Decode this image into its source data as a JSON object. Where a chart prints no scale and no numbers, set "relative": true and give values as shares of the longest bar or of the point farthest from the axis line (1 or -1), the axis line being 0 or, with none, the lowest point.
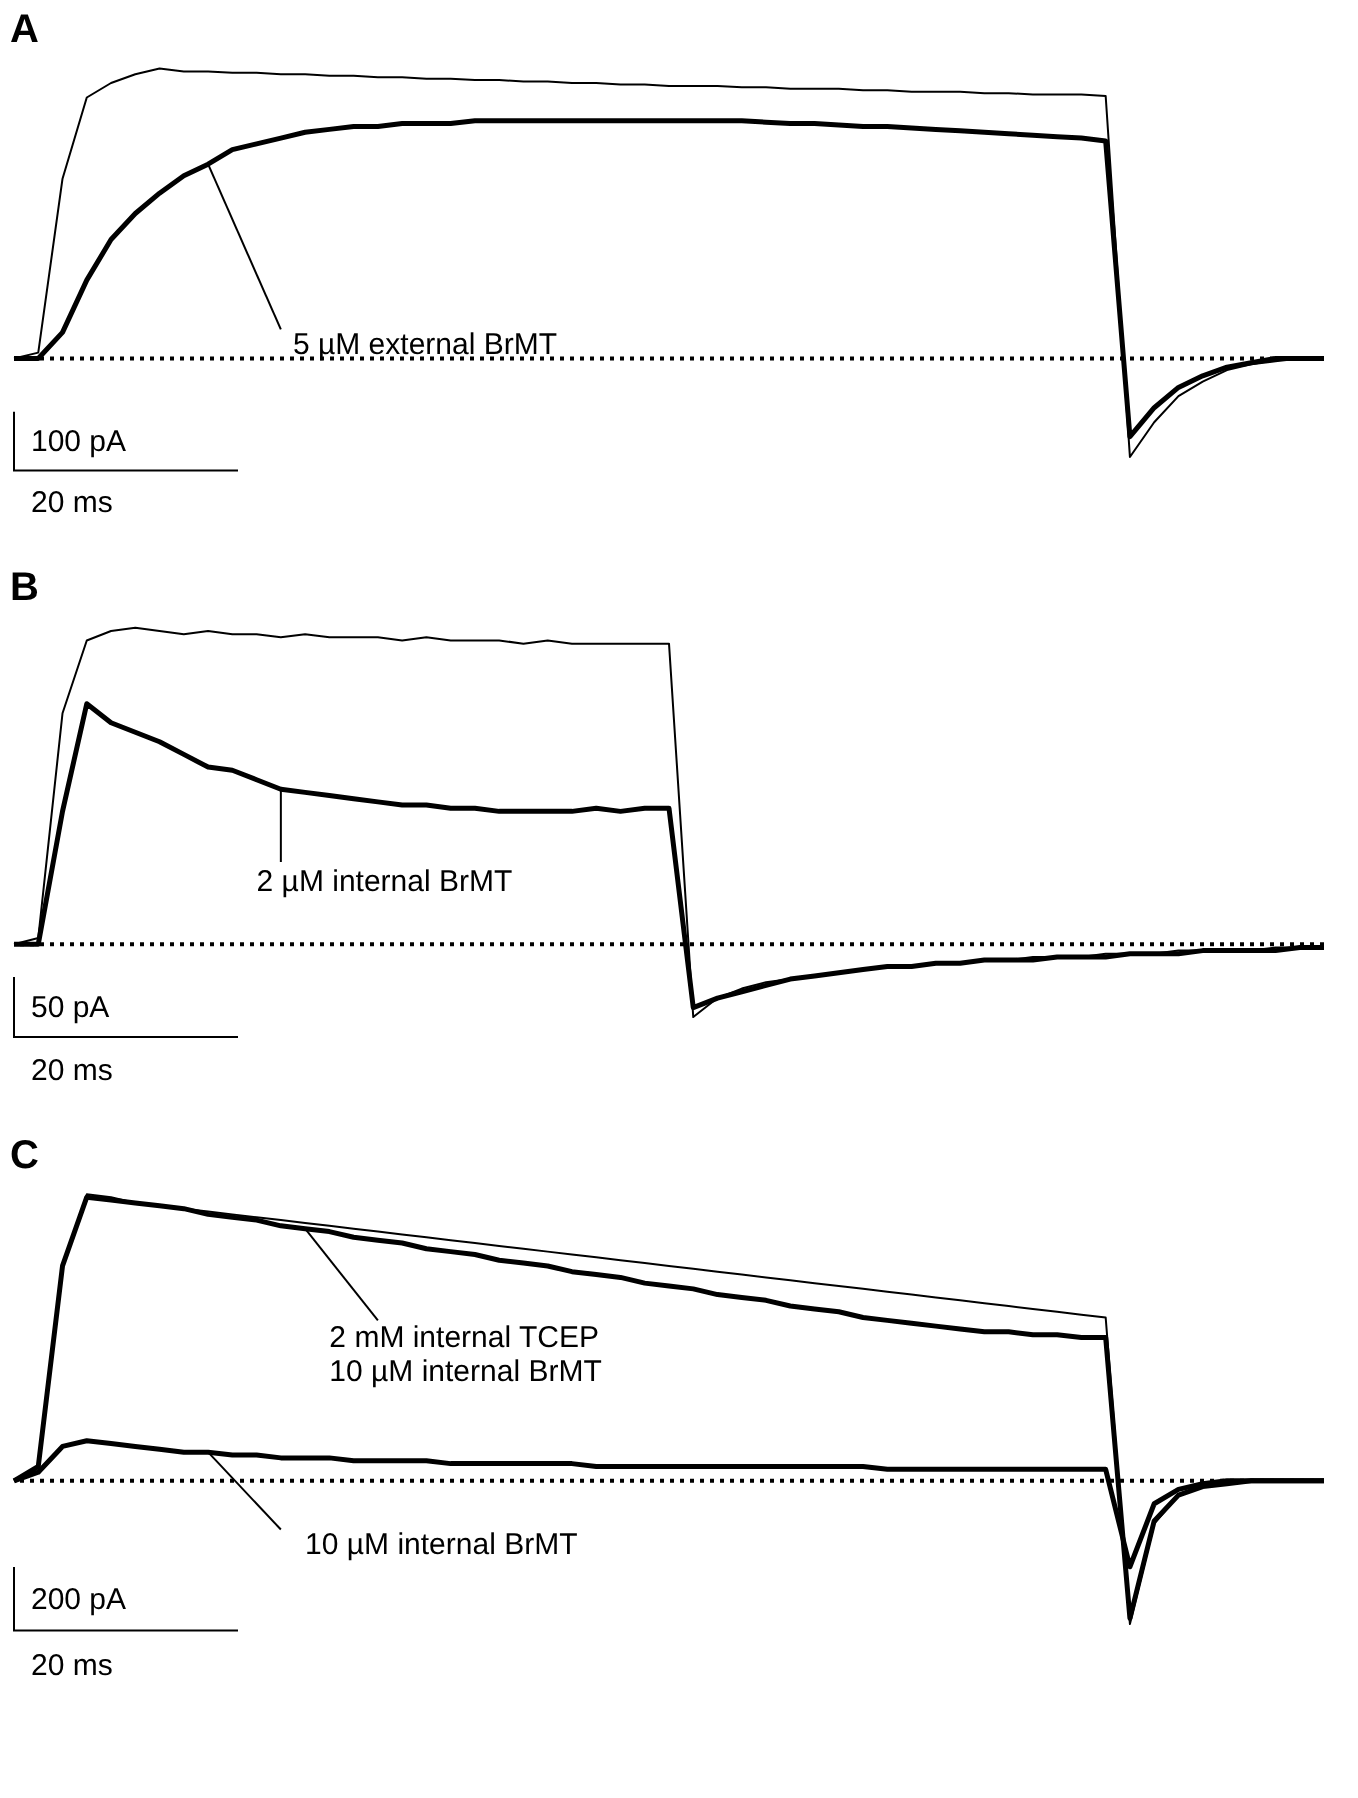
{
  "chart_data": [
    {
      "type": "line",
      "title": "A",
      "relative": true,
      "legend": false,
      "categories": [
        null,
        null,
        null,
        null,
        null,
        null,
        null,
        null,
        null,
        null,
        null,
        null,
        null,
        null,
        null,
        null,
        null,
        null,
        null,
        null,
        null,
        null,
        null,
        null,
        null,
        null,
        null,
        null,
        null,
        null,
        null,
        null,
        null,
        null,
        null,
        null,
        null,
        null,
        null,
        null,
        null,
        null,
        null,
        null,
        null,
        null,
        null,
        null,
        null,
        null,
        null,
        null,
        null,
        null,
        null
      ],
      "series": [
        {
          "color": "#000000",
          "values": [
            0,
            0.02,
            0.62,
            0.9,
            0.95,
            0.98,
            1.0,
            0.99,
            0.99,
            0.985,
            0.985,
            0.98,
            0.98,
            0.975,
            0.975,
            0.97,
            0.97,
            0.965,
            0.965,
            0.96,
            0.96,
            0.955,
            0.955,
            0.95,
            0.95,
            0.945,
            0.945,
            0.94,
            0.94,
            0.94,
            0.935,
            0.935,
            0.93,
            0.93,
            0.93,
            0.925,
            0.925,
            0.92,
            0.92,
            0.92,
            0.915,
            0.915,
            0.91,
            0.91,
            0.91,
            0.905,
            -0.34,
            -0.22,
            -0.13,
            -0.08,
            -0.04,
            -0.02,
            -0.01,
            0,
            0
          ]
        },
        {
          "name": "5 µM external BrMT",
          "color": "#000000",
          "values": [
            0,
            0,
            0.09,
            0.27,
            0.41,
            0.5,
            0.57,
            0.63,
            0.67,
            0.72,
            0.74,
            0.76,
            0.78,
            0.79,
            0.8,
            0.8,
            0.81,
            0.81,
            0.81,
            0.82,
            0.82,
            0.82,
            0.82,
            0.82,
            0.82,
            0.82,
            0.82,
            0.82,
            0.82,
            0.82,
            0.82,
            0.815,
            0.81,
            0.81,
            0.805,
            0.8,
            0.8,
            0.795,
            0.79,
            0.785,
            0.78,
            0.775,
            0.77,
            0.765,
            0.76,
            0.75,
            -0.27,
            -0.17,
            -0.1,
            -0.06,
            -0.03,
            -0.015,
            0,
            0,
            0
          ]
        }
      ],
      "ref_lines": [
        {
          "axis": "y",
          "value": 0,
          "line_style": "dotted",
          "color": "#000000"
        }
      ],
      "annotations": [
        "100 pA",
        "20 ms"
      ]
    },
    {
      "type": "line",
      "title": "B",
      "relative": true,
      "legend": false,
      "categories": [
        null,
        null,
        null,
        null,
        null,
        null,
        null,
        null,
        null,
        null,
        null,
        null,
        null,
        null,
        null,
        null,
        null,
        null,
        null,
        null,
        null,
        null,
        null,
        null,
        null,
        null,
        null,
        null,
        null,
        null,
        null,
        null,
        null,
        null,
        null,
        null,
        null,
        null,
        null,
        null,
        null,
        null,
        null,
        null,
        null,
        null,
        null,
        null,
        null,
        null,
        null,
        null,
        null,
        null,
        null
      ],
      "series": [
        {
          "color": "#000000",
          "values": [
            0,
            0.02,
            0.73,
            0.96,
            0.99,
            1.0,
            0.99,
            0.98,
            0.99,
            0.98,
            0.98,
            0.97,
            0.98,
            0.97,
            0.97,
            0.97,
            0.96,
            0.97,
            0.96,
            0.96,
            0.96,
            0.95,
            0.96,
            0.95,
            0.95,
            0.95,
            0.95,
            0.95,
            -0.23,
            -0.17,
            -0.14,
            -0.12,
            -0.11,
            -0.1,
            -0.09,
            -0.08,
            -0.07,
            -0.07,
            -0.06,
            -0.06,
            -0.05,
            -0.05,
            -0.04,
            -0.04,
            -0.04,
            -0.03,
            -0.03,
            -0.03,
            -0.02,
            -0.02,
            -0.02,
            -0.02,
            -0.01,
            -0.01,
            -0.01
          ]
        },
        {
          "name": "2 µM internal BrMT",
          "color": "#000000",
          "values": [
            0,
            0,
            0.42,
            0.76,
            0.7,
            0.67,
            0.64,
            0.6,
            0.56,
            0.55,
            0.52,
            0.49,
            0.48,
            0.47,
            0.46,
            0.45,
            0.44,
            0.44,
            0.43,
            0.43,
            0.42,
            0.42,
            0.42,
            0.42,
            0.43,
            0.42,
            0.43,
            0.43,
            -0.2,
            -0.17,
            -0.15,
            -0.13,
            -0.11,
            -0.1,
            -0.09,
            -0.08,
            -0.07,
            -0.07,
            -0.06,
            -0.06,
            -0.05,
            -0.05,
            -0.05,
            -0.04,
            -0.04,
            -0.04,
            -0.03,
            -0.03,
            -0.03,
            -0.02,
            -0.02,
            -0.02,
            -0.02,
            -0.01,
            -0.01
          ]
        }
      ],
      "ref_lines": [
        {
          "axis": "y",
          "value": 0,
          "line_style": "dotted",
          "color": "#000000"
        }
      ],
      "annotations": [
        "50 pA",
        "20 ms"
      ]
    },
    {
      "type": "line",
      "title": "C",
      "relative": true,
      "legend": false,
      "categories": [
        null,
        null,
        null,
        null,
        null,
        null,
        null,
        null,
        null,
        null,
        null,
        null,
        null,
        null,
        null,
        null,
        null,
        null,
        null,
        null,
        null,
        null,
        null,
        null,
        null,
        null,
        null,
        null,
        null,
        null,
        null,
        null,
        null,
        null,
        null,
        null,
        null,
        null,
        null,
        null,
        null,
        null,
        null,
        null,
        null,
        null,
        null,
        null,
        null,
        null,
        null,
        null,
        null,
        null,
        null
      ],
      "series": [
        {
          "color": "#000000",
          "values": [
            0,
            0.05,
            0.75,
            1.0,
            0.99,
            0.97,
            0.96,
            0.95,
            0.94,
            0.93,
            0.92,
            0.91,
            0.9,
            0.89,
            0.88,
            0.87,
            0.86,
            0.85,
            0.84,
            0.83,
            0.82,
            0.81,
            0.8,
            0.79,
            0.78,
            0.77,
            0.76,
            0.75,
            0.74,
            0.73,
            0.72,
            0.71,
            0.7,
            0.69,
            0.68,
            0.67,
            0.66,
            0.65,
            0.64,
            0.63,
            0.62,
            0.61,
            0.6,
            0.59,
            0.58,
            0.57,
            -0.5,
            -0.15,
            -0.05,
            -0.02,
            -0.01,
            0,
            0,
            0,
            0
          ]
        },
        {
          "name": "2 mM internal TCEP\n10 µM internal BrMT",
          "color": "#000000",
          "values": [
            0,
            0.05,
            0.75,
            0.99,
            0.98,
            0.97,
            0.96,
            0.95,
            0.93,
            0.92,
            0.91,
            0.89,
            0.88,
            0.87,
            0.85,
            0.84,
            0.83,
            0.81,
            0.8,
            0.79,
            0.77,
            0.76,
            0.75,
            0.73,
            0.72,
            0.71,
            0.69,
            0.68,
            0.67,
            0.65,
            0.64,
            0.63,
            0.61,
            0.6,
            0.59,
            0.57,
            0.56,
            0.55,
            0.54,
            0.53,
            0.52,
            0.52,
            0.51,
            0.51,
            0.5,
            0.5,
            -0.48,
            -0.14,
            -0.05,
            -0.02,
            -0.01,
            0,
            0,
            0,
            0
          ]
        },
        {
          "name": "10 µM internal BrMT",
          "color": "#000000",
          "values": [
            0,
            0.03,
            0.12,
            0.14,
            0.13,
            0.12,
            0.11,
            0.1,
            0.1,
            0.09,
            0.09,
            0.08,
            0.08,
            0.08,
            0.07,
            0.07,
            0.07,
            0.07,
            0.06,
            0.06,
            0.06,
            0.06,
            0.06,
            0.06,
            0.05,
            0.05,
            0.05,
            0.05,
            0.05,
            0.05,
            0.05,
            0.05,
            0.05,
            0.05,
            0.05,
            0.05,
            0.04,
            0.04,
            0.04,
            0.04,
            0.04,
            0.04,
            0.04,
            0.04,
            0.04,
            0.04,
            -0.3,
            -0.08,
            -0.03,
            -0.01,
            0,
            0,
            0,
            0,
            0
          ]
        }
      ],
      "ref_lines": [
        {
          "axis": "y",
          "value": 0,
          "line_style": "dotted",
          "color": "#000000"
        }
      ],
      "annotations": [
        "200 pA",
        "20 ms"
      ]
    }
  ]
}
